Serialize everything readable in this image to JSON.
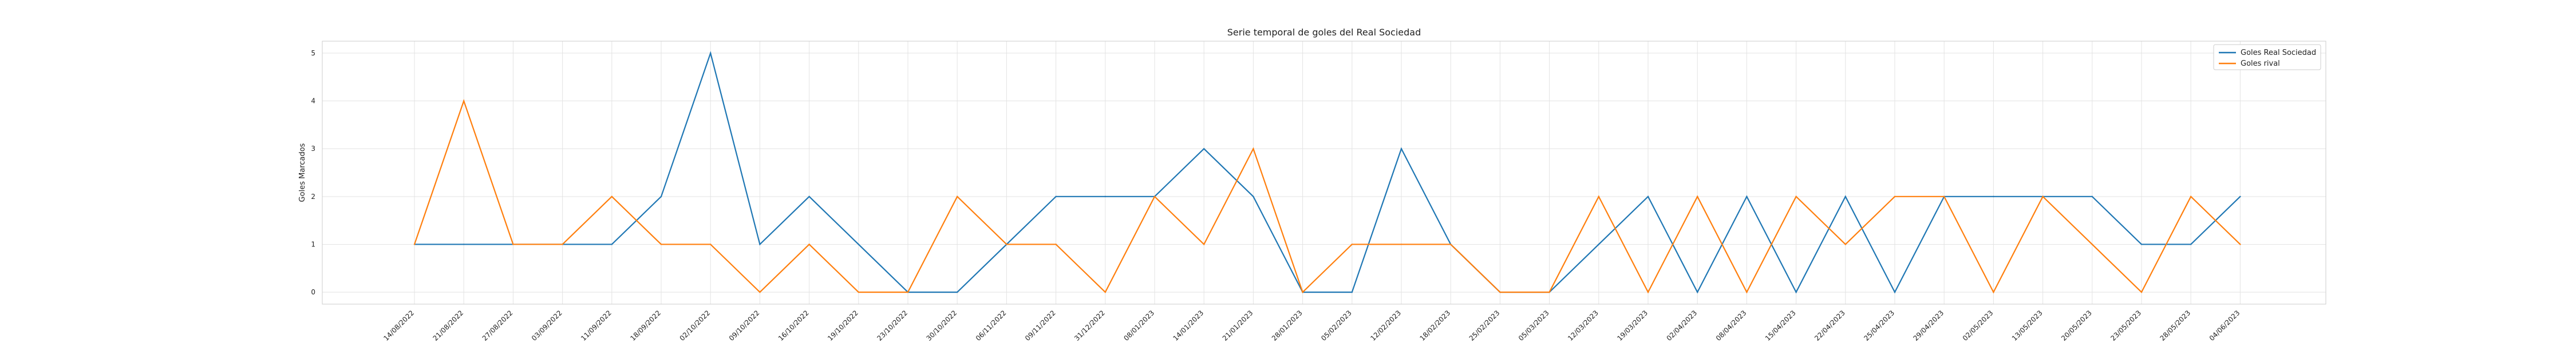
{
  "chart_data": {
    "type": "line",
    "title": "Serie temporal de goles del Real Sociedad",
    "xlabel": "",
    "ylabel": "Goles Marcados",
    "ylim": [
      -0.25,
      5.25
    ],
    "yticks": [
      0,
      1,
      2,
      3,
      4,
      5
    ],
    "grid": true,
    "legend_position": "top-right",
    "categories": [
      "14/08/2022",
      "21/08/2022",
      "27/08/2022",
      "03/09/2022",
      "11/09/2022",
      "18/09/2022",
      "02/10/2022",
      "09/10/2022",
      "16/10/2022",
      "19/10/2022",
      "23/10/2022",
      "30/10/2022",
      "06/11/2022",
      "09/11/2022",
      "31/12/2022",
      "08/01/2023",
      "14/01/2023",
      "21/01/2023",
      "28/01/2023",
      "05/02/2023",
      "12/02/2023",
      "18/02/2023",
      "25/02/2023",
      "05/03/2023",
      "12/03/2023",
      "19/03/2023",
      "02/04/2023",
      "08/04/2023",
      "15/04/2023",
      "22/04/2023",
      "25/04/2023",
      "29/04/2023",
      "02/05/2023",
      "13/05/2023",
      "20/05/2023",
      "23/05/2023",
      "28/05/2023",
      "04/06/2023"
    ],
    "series": [
      {
        "name": "Goles Real Sociedad",
        "color": "#1f77b4",
        "values": [
          1,
          1,
          1,
          1,
          1,
          2,
          5,
          1,
          2,
          1,
          0,
          0,
          1,
          2,
          2,
          2,
          3,
          2,
          0,
          0,
          3,
          1,
          0,
          0,
          1,
          2,
          0,
          2,
          0,
          2,
          0,
          2,
          2,
          2,
          2,
          1,
          1,
          2
        ]
      },
      {
        "name": "Goles rival",
        "color": "#ff7f0e",
        "values": [
          1,
          4,
          1,
          1,
          2,
          1,
          1,
          0,
          1,
          0,
          0,
          2,
          1,
          1,
          0,
          2,
          1,
          3,
          0,
          1,
          1,
          1,
          0,
          0,
          2,
          0,
          2,
          0,
          2,
          1,
          2,
          2,
          0,
          2,
          1,
          0,
          2,
          1
        ]
      }
    ]
  }
}
